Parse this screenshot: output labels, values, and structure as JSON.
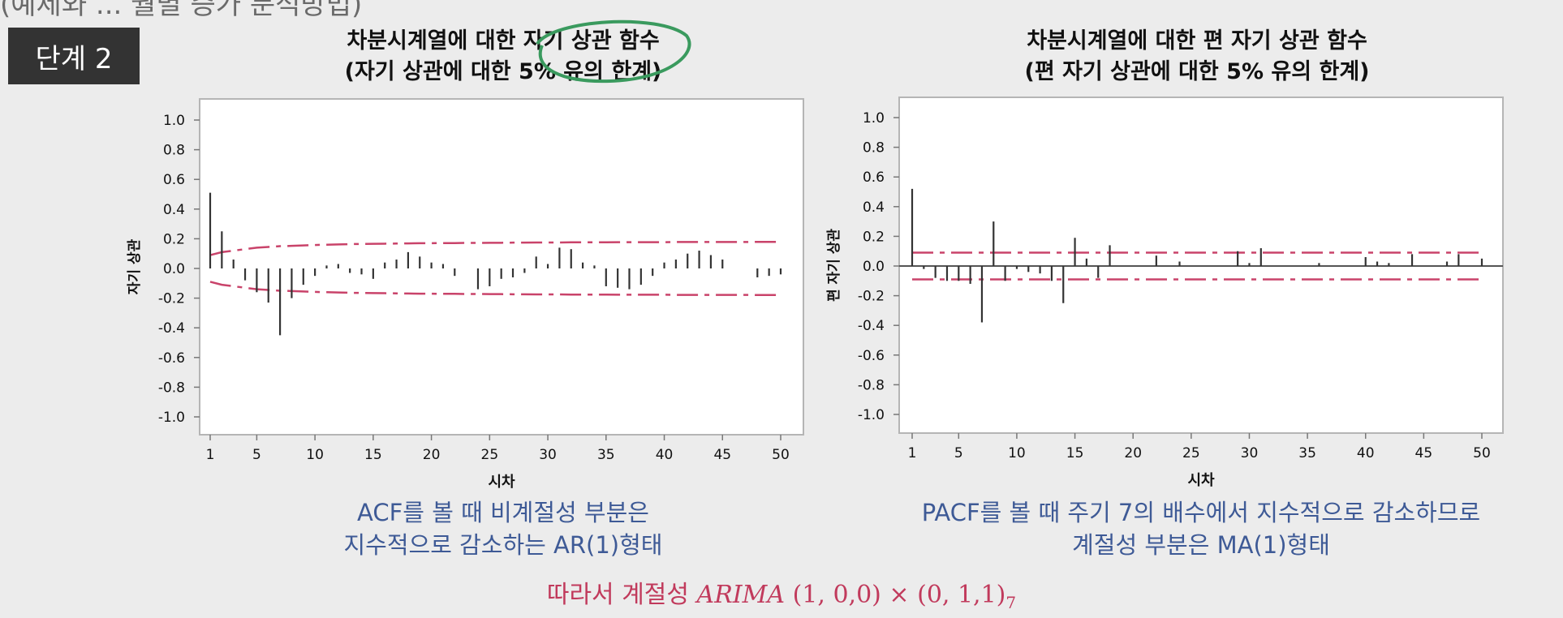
{
  "header": {
    "partial_top_text": "(예제와 ... 월별 증가 분석방법)",
    "step_badge": "단계 2"
  },
  "colors": {
    "bar": "#333333",
    "bound": "#c9436a",
    "annotation_circle": "#3a9a5e",
    "caption": "#3e5a96",
    "conclusion": "#c13a5c"
  },
  "chart_data": [
    {
      "type": "bar",
      "title_line1": "차분시계열에 대한 자기 상관 함수",
      "title_line2": "(자기 상관에 대한 5% 유의 한계)",
      "xlabel": "시차",
      "ylabel": "자기 상관",
      "ylim": [
        -1.0,
        1.0
      ],
      "y_ticks": [
        "1.0",
        "0.8",
        "0.6",
        "0.4",
        "0.2",
        "0.0",
        "-0.2",
        "-0.4",
        "-0.6",
        "-0.8",
        "-1.0"
      ],
      "x_ticks": [
        "1",
        "5",
        "10",
        "15",
        "20",
        "25",
        "30",
        "35",
        "40",
        "45",
        "50"
      ],
      "lags": [
        1,
        2,
        3,
        4,
        5,
        6,
        7,
        8,
        9,
        10,
        11,
        12,
        13,
        14,
        15,
        16,
        17,
        18,
        19,
        20,
        21,
        22,
        23,
        24,
        25,
        26,
        27,
        28,
        29,
        30,
        31,
        32,
        33,
        34,
        35,
        36,
        37,
        38,
        39,
        40,
        41,
        42,
        43,
        44,
        45,
        46,
        47,
        48,
        49,
        50
      ],
      "values": [
        0.51,
        0.25,
        0.06,
        -0.08,
        -0.16,
        -0.23,
        -0.45,
        -0.2,
        -0.11,
        -0.05,
        0.02,
        0.03,
        -0.03,
        -0.04,
        -0.07,
        0.04,
        0.06,
        0.11,
        0.08,
        0.04,
        0.03,
        -0.05,
        0,
        -0.14,
        -0.12,
        -0.07,
        -0.06,
        -0.03,
        0.08,
        0.03,
        0.14,
        0.13,
        0.04,
        0.02,
        -0.12,
        -0.13,
        -0.14,
        -0.11,
        -0.05,
        0.04,
        0.06,
        0.1,
        0.12,
        0.09,
        0.06,
        0,
        0,
        -0.06,
        -0.05,
        -0.04
      ],
      "upper_bound": [
        0.09,
        0.11,
        0.12,
        0.13,
        0.14,
        0.145,
        0.15,
        0.152,
        0.155,
        0.158,
        0.16,
        0.162,
        0.164,
        0.165,
        0.166,
        0.167,
        0.168,
        0.169,
        0.17,
        0.17,
        0.171,
        0.171,
        0.172,
        0.172,
        0.173,
        0.173,
        0.174,
        0.174,
        0.175,
        0.175,
        0.175,
        0.176,
        0.176,
        0.176,
        0.176,
        0.177,
        0.177,
        0.177,
        0.177,
        0.177,
        0.178,
        0.178,
        0.178,
        0.178,
        0.178,
        0.178,
        0.178,
        0.179,
        0.179,
        0.179
      ],
      "lower_bound": [
        -0.09,
        -0.11,
        -0.12,
        -0.13,
        -0.14,
        -0.145,
        -0.15,
        -0.152,
        -0.155,
        -0.158,
        -0.16,
        -0.162,
        -0.164,
        -0.165,
        -0.166,
        -0.167,
        -0.168,
        -0.169,
        -0.17,
        -0.17,
        -0.171,
        -0.171,
        -0.172,
        -0.172,
        -0.173,
        -0.173,
        -0.174,
        -0.174,
        -0.175,
        -0.175,
        -0.175,
        -0.176,
        -0.176,
        -0.176,
        -0.176,
        -0.177,
        -0.177,
        -0.177,
        -0.177,
        -0.177,
        -0.178,
        -0.178,
        -0.178,
        -0.178,
        -0.178,
        -0.178,
        -0.178,
        -0.179,
        -0.179,
        -0.179
      ],
      "caption_line1": "ACF를 볼 때 비계절성 부분은",
      "caption_line2": "지수적으로 감소하는 AR(1)형태"
    },
    {
      "type": "bar",
      "title_line1": "차분시계열에 대한 편 자기 상관 함수",
      "title_line2": "(편 자기 상관에 대한 5% 유의 한계)",
      "xlabel": "시차",
      "ylabel": "편 자기 상관",
      "ylim": [
        -1.0,
        1.0
      ],
      "y_ticks": [
        "1.0",
        "0.8",
        "0.6",
        "0.4",
        "0.2",
        "0.0",
        "-0.2",
        "-0.4",
        "-0.6",
        "-0.8",
        "-1.0"
      ],
      "x_ticks": [
        "1",
        "5",
        "10",
        "15",
        "20",
        "25",
        "30",
        "35",
        "40",
        "45",
        "50"
      ],
      "lags": [
        1,
        2,
        3,
        4,
        5,
        6,
        7,
        8,
        9,
        10,
        11,
        12,
        13,
        14,
        15,
        16,
        17,
        18,
        19,
        20,
        21,
        22,
        23,
        24,
        25,
        26,
        27,
        28,
        29,
        30,
        31,
        32,
        33,
        34,
        35,
        36,
        37,
        38,
        39,
        40,
        41,
        42,
        43,
        44,
        45,
        46,
        47,
        48,
        49,
        50
      ],
      "values": [
        0.52,
        -0.02,
        -0.08,
        -0.1,
        -0.1,
        -0.12,
        -0.38,
        0.3,
        -0.1,
        -0.02,
        -0.04,
        -0.05,
        -0.1,
        -0.25,
        0.19,
        0.05,
        -0.08,
        0.14,
        0,
        0,
        0,
        0.07,
        0,
        0.03,
        0,
        0,
        0,
        0,
        0.1,
        0.02,
        0.12,
        0,
        0,
        0,
        0,
        0.02,
        0,
        0,
        0,
        0.06,
        0.03,
        0.02,
        0,
        0.08,
        0,
        0,
        0.03,
        0.08,
        0,
        0.05
      ],
      "bound": 0.09,
      "caption_line1": "PACF를 볼 때 주기 7의 배수에서 지수적으로 감소하므로",
      "caption_line2": "계절성 부분은 MA(1)형태"
    }
  ],
  "conclusion": {
    "prefix": "따라서 계절성",
    "model": "ARIMA",
    "nonseasonal": "(1, 0,0)",
    "times": "×",
    "seasonal": "(0, 1,1)",
    "period": "7"
  }
}
